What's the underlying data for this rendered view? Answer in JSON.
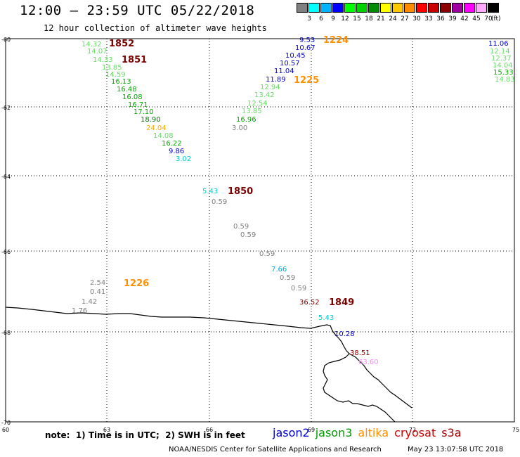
{
  "title": "12:00 – 23:59 UTC 05/22/2018",
  "subtitle": "12 hour collection of altimeter wave heights",
  "legend": {
    "unit": "(ft)",
    "bins": [
      {
        "label": "3",
        "color": "#808080"
      },
      {
        "label": "6",
        "color": "#00ffff"
      },
      {
        "label": "9",
        "color": "#00b4ff"
      },
      {
        "label": "12",
        "color": "#0000ff"
      },
      {
        "label": "15",
        "color": "#00ff00"
      },
      {
        "label": "18",
        "color": "#00d200"
      },
      {
        "label": "21",
        "color": "#008c00"
      },
      {
        "label": "24",
        "color": "#ffff00"
      },
      {
        "label": "27",
        "color": "#ffc800"
      },
      {
        "label": "30",
        "color": "#ff8c00"
      },
      {
        "label": "33",
        "color": "#ff0000"
      },
      {
        "label": "36",
        "color": "#c80000"
      },
      {
        "label": "39",
        "color": "#8b0000"
      },
      {
        "label": "42",
        "color": "#a000a0"
      },
      {
        "label": "45",
        "color": "#ff00ff"
      },
      {
        "label": "70",
        "color": "#ffaaff"
      },
      {
        "label": "",
        "color": "#000000"
      }
    ]
  },
  "axes": {
    "lat_labels": [
      "-60",
      "-62",
      "-64",
      "-66",
      "-68",
      "-70"
    ],
    "lon_labels": [
      "60",
      "63",
      "66",
      "69",
      "72",
      "75"
    ]
  },
  "refs": [
    {
      "text": "1852",
      "color": "#7b0000"
    },
    {
      "text": "1851",
      "color": "#7b0000"
    },
    {
      "text": "1224",
      "color": "#ff9000"
    },
    {
      "text": "1225",
      "color": "#ff9000"
    },
    {
      "text": "1850",
      "color": "#7b0000"
    },
    {
      "text": "1226",
      "color": "#ff9000"
    },
    {
      "text": "1849",
      "color": "#7b0000"
    }
  ],
  "obs": [
    {
      "v": "14.32",
      "c": "#66dd66"
    },
    {
      "v": "14.07",
      "c": "#66dd66"
    },
    {
      "v": "14.33",
      "c": "#66dd66"
    },
    {
      "v": "13.85",
      "c": "#66dd66"
    },
    {
      "v": "14.59",
      "c": "#66dd66"
    },
    {
      "v": "16.13",
      "c": "#00aa00"
    },
    {
      "v": "16.48",
      "c": "#00aa00"
    },
    {
      "v": "16.08",
      "c": "#00aa00"
    },
    {
      "v": "16.71",
      "c": "#00aa00"
    },
    {
      "v": "17.10",
      "c": "#00aa00"
    },
    {
      "v": "18.90",
      "c": "#007700"
    },
    {
      "v": "24.04",
      "c": "#ffaa00"
    },
    {
      "v": "14.08",
      "c": "#66dd66"
    },
    {
      "v": "16.22",
      "c": "#00aa00"
    },
    {
      "v": "9.86",
      "c": "#0000cc"
    },
    {
      "v": "3.02",
      "c": "#00cccc"
    },
    {
      "v": "9.53",
      "c": "#0000cc"
    },
    {
      "v": "10.67",
      "c": "#0000cc"
    },
    {
      "v": "10.45",
      "c": "#0000cc"
    },
    {
      "v": "10.57",
      "c": "#0000cc"
    },
    {
      "v": "11.04",
      "c": "#0000cc"
    },
    {
      "v": "11.89",
      "c": "#0000cc"
    },
    {
      "v": "12.94",
      "c": "#66dd66"
    },
    {
      "v": "13.42",
      "c": "#66dd66"
    },
    {
      "v": "12.54",
      "c": "#66dd66"
    },
    {
      "v": "13.85",
      "c": "#66dd66"
    },
    {
      "v": "16.96",
      "c": "#00aa00"
    },
    {
      "v": "3.00",
      "c": "#808080"
    },
    {
      "v": "11.06",
      "c": "#0000cc"
    },
    {
      "v": "12.14",
      "c": "#66dd66"
    },
    {
      "v": "12.37",
      "c": "#66dd66"
    },
    {
      "v": "14.04",
      "c": "#66dd66"
    },
    {
      "v": "15.33",
      "c": "#00aa00"
    },
    {
      "v": "14.83",
      "c": "#66dd66"
    },
    {
      "v": "5.43",
      "c": "#00cccc"
    },
    {
      "v": "0.59",
      "c": "#808080"
    },
    {
      "v": "0.59",
      "c": "#808080"
    },
    {
      "v": "0.59",
      "c": "#808080"
    },
    {
      "v": "0.59",
      "c": "#808080"
    },
    {
      "v": "7.66",
      "c": "#00aacc"
    },
    {
      "v": "0.59",
      "c": "#808080"
    },
    {
      "v": "0.59",
      "c": "#808080"
    },
    {
      "v": "36.52",
      "c": "#7b0000"
    },
    {
      "v": "5.43",
      "c": "#00cccc"
    },
    {
      "v": "10.28",
      "c": "#0000cc"
    },
    {
      "v": "38.51",
      "c": "#8b0000"
    },
    {
      "v": "63.60",
      "c": "#ff88ff"
    },
    {
      "v": "2.54",
      "c": "#808080"
    },
    {
      "v": "0.41",
      "c": "#808080"
    },
    {
      "v": "1.42",
      "c": "#808080"
    },
    {
      "v": "1.76",
      "c": "#808080"
    }
  ],
  "footer": {
    "note": "note:  1) Time is in UTC;  2) SWH is in feet",
    "satellites": [
      {
        "name": "jason2",
        "color": "#0000cc"
      },
      {
        "name": "jason3",
        "color": "#009900"
      },
      {
        "name": "altika",
        "color": "#ff9000"
      },
      {
        "name": "cryosat",
        "color": "#cc0000"
      },
      {
        "name": "s3a",
        "color": "#990000"
      }
    ],
    "credit": "NOAA/NESDIS Center for Satellite Applications and Research",
    "timestamp": "May 23 13:07:58 UTC 2018"
  }
}
